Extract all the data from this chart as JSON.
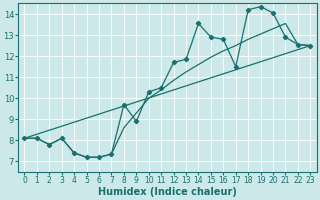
{
  "xlabel": "Humidex (Indice chaleur)",
  "bg_color": "#cce8e8",
  "line_color": "#1a7070",
  "grid_color": "#b0d8d8",
  "xlim": [
    -0.5,
    23.5
  ],
  "ylim": [
    6.5,
    14.5
  ],
  "xticks": [
    0,
    1,
    2,
    3,
    4,
    5,
    6,
    7,
    8,
    9,
    10,
    11,
    12,
    13,
    14,
    15,
    16,
    17,
    18,
    19,
    20,
    21,
    22,
    23
  ],
  "yticks": [
    7,
    8,
    9,
    10,
    11,
    12,
    13,
    14
  ],
  "data_x": [
    0,
    1,
    2,
    3,
    4,
    5,
    6,
    7,
    8,
    9,
    10,
    11,
    12,
    13,
    14,
    15,
    16,
    17,
    18,
    19,
    20,
    21,
    22,
    23
  ],
  "data_y": [
    8.1,
    8.1,
    7.8,
    8.1,
    7.4,
    7.2,
    7.2,
    7.35,
    9.7,
    8.9,
    10.3,
    10.5,
    11.7,
    11.85,
    13.55,
    12.9,
    12.8,
    11.5,
    14.2,
    14.35,
    14.05,
    12.9,
    12.55,
    12.5
  ],
  "trend_x": [
    0,
    23
  ],
  "trend_y": [
    8.1,
    12.5
  ],
  "envelope_x": [
    0,
    1,
    2,
    3,
    4,
    5,
    6,
    7,
    8,
    9,
    10,
    11,
    12,
    13,
    14,
    15,
    16,
    17,
    18,
    19,
    20,
    21,
    22,
    23
  ],
  "envelope_y": [
    8.1,
    8.1,
    7.8,
    8.1,
    7.4,
    7.2,
    7.2,
    7.35,
    8.6,
    9.3,
    10.0,
    10.4,
    10.85,
    11.25,
    11.6,
    11.95,
    12.25,
    12.5,
    12.8,
    13.05,
    13.3,
    13.55,
    12.55,
    12.5
  ]
}
